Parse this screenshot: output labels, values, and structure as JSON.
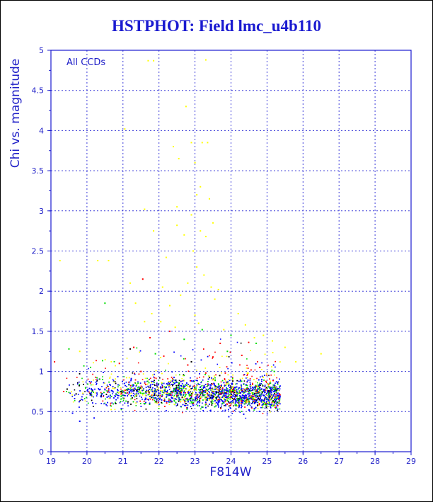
{
  "title": "HSTPHOT: Field lmc_u4b110",
  "chart_data": {
    "type": "scatter",
    "title": "HSTPHOT: Field lmc_u4b110",
    "xlabel": "F814W",
    "ylabel": "Chi vs. magnitude",
    "annotation": "All CCDs",
    "xlim": [
      19,
      29
    ],
    "ylim": [
      0,
      5
    ],
    "xticks": [
      "19",
      "20",
      "21",
      "22",
      "23",
      "24",
      "25",
      "26",
      "27",
      "28",
      "29"
    ],
    "yticks": [
      "0",
      "0.5",
      "1",
      "1.5",
      "2",
      "2.5",
      "3",
      "3.5",
      "4",
      "4.5",
      "5"
    ],
    "grid": true,
    "legend": "none",
    "colors": {
      "frame": "#1a1ad0",
      "grid": "#3a3ad8",
      "text": "#2020c8"
    },
    "series": [
      {
        "color": "#ffff00",
        "points": [
          [
            21.7,
            4.87
          ],
          [
            21.85,
            4.87
          ],
          [
            23.3,
            4.88
          ],
          [
            22.75,
            4.3
          ],
          [
            21.05,
            4.02
          ],
          [
            22.4,
            3.8
          ],
          [
            22.9,
            3.85
          ],
          [
            23.2,
            3.85
          ],
          [
            23.35,
            3.85
          ],
          [
            22.55,
            3.65
          ],
          [
            23.0,
            3.6
          ],
          [
            23.15,
            3.3
          ],
          [
            23.05,
            3.2
          ],
          [
            22.5,
            3.05
          ],
          [
            21.6,
            3.02
          ],
          [
            23.4,
            3.15
          ],
          [
            22.9,
            2.95
          ],
          [
            21.85,
            2.75
          ],
          [
            22.5,
            2.82
          ],
          [
            22.7,
            2.7
          ],
          [
            23.15,
            2.75
          ],
          [
            23.3,
            2.68
          ],
          [
            23.5,
            2.85
          ],
          [
            22.95,
            2.5
          ],
          [
            22.2,
            2.42
          ],
          [
            23.05,
            2.3
          ],
          [
            19.25,
            2.38
          ],
          [
            20.3,
            2.38
          ],
          [
            20.6,
            2.38
          ],
          [
            21.2,
            2.1
          ],
          [
            22.1,
            2.05
          ],
          [
            22.8,
            2.1
          ],
          [
            23.25,
            2.2
          ],
          [
            23.45,
            2.05
          ],
          [
            23.65,
            2.02
          ],
          [
            21.35,
            1.85
          ],
          [
            21.8,
            1.72
          ],
          [
            22.3,
            1.82
          ],
          [
            22.6,
            1.95
          ],
          [
            23.0,
            1.7
          ],
          [
            23.55,
            1.9
          ],
          [
            24.2,
            1.72
          ],
          [
            21.6,
            1.62
          ],
          [
            22.05,
            1.62
          ],
          [
            22.45,
            1.55
          ],
          [
            23.1,
            1.6
          ],
          [
            23.8,
            1.52
          ],
          [
            24.4,
            1.58
          ],
          [
            24.65,
            1.42
          ],
          [
            24.9,
            1.45
          ],
          [
            25.15,
            1.38
          ],
          [
            26.5,
            1.22
          ],
          [
            25.8,
            1.12
          ],
          [
            19.8,
            1.25
          ],
          [
            25.5,
            1.3
          ]
        ]
      },
      {
        "color": "#ff0000",
        "points": [
          [
            21.55,
            2.15
          ],
          [
            22.3,
            1.5
          ],
          [
            21.75,
            1.42
          ],
          [
            23.7,
            1.35
          ],
          [
            21.3,
            1.3
          ],
          [
            23.5,
            1.18
          ],
          [
            24.3,
            1.2
          ],
          [
            19.1,
            1.12
          ],
          [
            20.9,
            1.1
          ],
          [
            22.8,
            1.08
          ],
          [
            24.8,
            1.05
          ],
          [
            21.5,
            1.0
          ],
          [
            23.3,
            0.98
          ]
        ]
      },
      {
        "color": "#00dd00",
        "points": [
          [
            20.5,
            1.85
          ],
          [
            23.2,
            1.52
          ],
          [
            24.0,
            1.45
          ],
          [
            22.7,
            1.4
          ],
          [
            19.5,
            1.28
          ],
          [
            24.7,
            1.35
          ],
          [
            21.9,
            1.22
          ],
          [
            23.9,
            1.25
          ],
          [
            20.1,
            1.05
          ],
          [
            25.2,
            1.0
          ]
        ]
      },
      {
        "color": "#0000ff",
        "points": [
          [
            19.8,
            0.38
          ],
          [
            20.2,
            0.42
          ],
          [
            19.6,
            0.48
          ],
          [
            23.3,
            0.55
          ],
          [
            24.5,
            0.52
          ]
        ]
      },
      {
        "color": "#000000",
        "points": [
          [
            19.45,
            0.78
          ],
          [
            19.7,
            0.72
          ],
          [
            20.8,
            0.6
          ],
          [
            21.2,
            1.28
          ],
          [
            22.9,
            1.12
          ],
          [
            24.05,
            0.88
          ],
          [
            23.6,
            0.74
          ]
        ]
      }
    ]
  }
}
